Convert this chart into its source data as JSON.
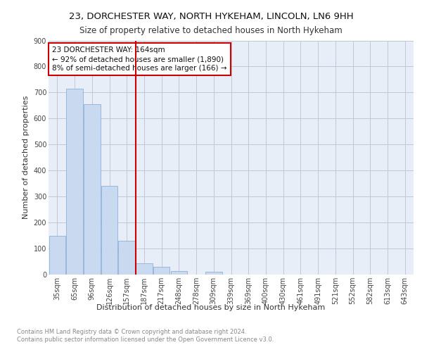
{
  "title1": "23, DORCHESTER WAY, NORTH HYKEHAM, LINCOLN, LN6 9HH",
  "title2": "Size of property relative to detached houses in North Hykeham",
  "xlabel": "Distribution of detached houses by size in North Hykeham",
  "ylabel": "Number of detached properties",
  "categories": [
    "35sqm",
    "65sqm",
    "96sqm",
    "126sqm",
    "157sqm",
    "187sqm",
    "217sqm",
    "248sqm",
    "278sqm",
    "309sqm",
    "339sqm",
    "369sqm",
    "400sqm",
    "430sqm",
    "461sqm",
    "491sqm",
    "521sqm",
    "552sqm",
    "582sqm",
    "613sqm",
    "643sqm"
  ],
  "values": [
    150,
    715,
    655,
    340,
    130,
    43,
    30,
    13,
    0,
    10,
    0,
    0,
    0,
    0,
    0,
    0,
    0,
    0,
    0,
    0,
    0
  ],
  "bar_color": "#c9d9f0",
  "bar_edge_color": "#7ea8d0",
  "property_line_color": "#cc0000",
  "annotation_text": "23 DORCHESTER WAY: 164sqm\n← 92% of detached houses are smaller (1,890)\n8% of semi-detached houses are larger (166) →",
  "annotation_box_color": "#ffffff",
  "annotation_box_edge": "#cc0000",
  "ylim": [
    0,
    900
  ],
  "yticks": [
    0,
    100,
    200,
    300,
    400,
    500,
    600,
    700,
    800,
    900
  ],
  "grid_color": "#c0c8d8",
  "background_color": "#e8eef8",
  "footer_text": "Contains HM Land Registry data © Crown copyright and database right 2024.\nContains public sector information licensed under the Open Government Licence v3.0.",
  "title1_fontsize": 9.5,
  "title2_fontsize": 8.5,
  "xlabel_fontsize": 8,
  "ylabel_fontsize": 8,
  "tick_fontsize": 7,
  "annotation_fontsize": 7.5,
  "footer_fontsize": 6
}
